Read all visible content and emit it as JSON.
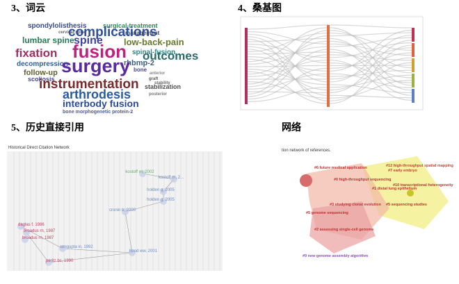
{
  "panels": [
    {
      "heading": "3、词云",
      "words": [
        "spondylolisthesis",
        "surgical-treatment",
        "management",
        "cervical-spine",
        "complications",
        "lumbar spine",
        "spine",
        "low-back-pain",
        "fixation",
        "fusion",
        "spinal-fusion",
        "decompression",
        "rhbmp-2",
        "outcomes",
        "follow-up",
        "surgery",
        "bone",
        "scoliosis",
        "anterior",
        "instrumentation",
        "graft",
        "stability",
        "stabilization",
        "posterior",
        "arthrodesis",
        "interbody fusion",
        "bone morphogenetic protein-2"
      ]
    },
    {
      "heading": "4、桑基图"
    },
    {
      "heading": "5、历史直接引用",
      "subtitle": "Historical Direct Citation Network",
      "nodes": [
        "kostoff rn, 2002",
        "kostoff rn, 2...",
        "holden g, 2005",
        "holden g, 2005",
        "cronin b, 2000",
        "daglas f, 1986",
        "broadus rn, 1987",
        "broadus rn, 1987",
        "sengupta in, 1992",
        "hood ww, 2001",
        "peritz bc, 1990"
      ]
    },
    {
      "heading": "网络",
      "subtitle": "tion network of references.",
      "clusters": [
        "#6 future medical application",
        "#12 high-throughput spatial mapping",
        "#7 early embryo",
        "#0 high-throughput sequencing",
        "#1 distal lung epithelium",
        "#10 transcriptional heterogeneity",
        "#3 studying clonal evolution",
        "#5 sequencing studies",
        "#5 genome sequencing",
        "#2 assessing single-cell genome",
        "#9 new genome assembly algorithm"
      ]
    }
  ]
}
